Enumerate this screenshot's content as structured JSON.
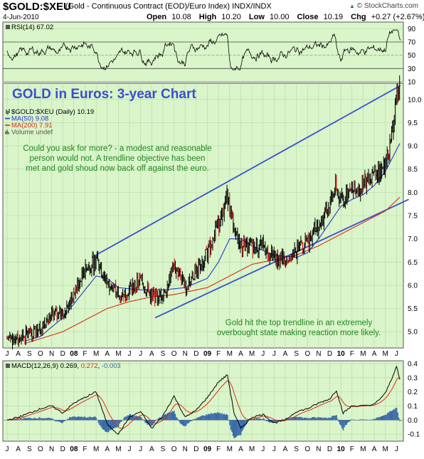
{
  "header": {
    "symbol": "$GOLD:$XEU",
    "description": "(Gold - Continuous Contract (EOD)/Euro Index)",
    "exchange": "INDX/INDX",
    "date": "4-Jun-2010",
    "open_label": "Open",
    "open": "10.08",
    "high_label": "High",
    "high": "10.20",
    "low_label": "Low",
    "low": "10.00",
    "close_label": "Close",
    "close": "10.19",
    "chg_label": "Chg",
    "chg": "+0.27 (+2.67%)",
    "brand": "© StockCharts.com",
    "brand_mark": "▲"
  },
  "colors": {
    "panel_bg": "#d9f5c9",
    "price_bar": "#000000",
    "price_bar_alt": "#cc0000",
    "ma50": "#2a36c8",
    "ma200": "#dd2a1a",
    "trendline": "#3a4fd0",
    "macd_line": "#000000",
    "macd_signal": "#dd2a1a",
    "macd_hist": "#3a6aa8",
    "rsi_fill": "#66a866",
    "annotation": "#228822",
    "headline": "#3a4fd0"
  },
  "chart_data": [
    {
      "type": "line",
      "panel": "RSI",
      "legend": "RSI(14) 67.02",
      "y_ticks": [
        10,
        30,
        50,
        70,
        90
      ],
      "ylim": [
        10,
        100
      ],
      "overbought": 70,
      "oversold": 30,
      "last_value": 67.02
    },
    {
      "type": "ohlc",
      "panel": "price",
      "title": "GOLD in Euros: 3-year Chart",
      "legend": [
        {
          "name": "$GOLD:$XEU (Daily) 10.19",
          "marker": "bars"
        },
        {
          "name": "MA(50) 9.08",
          "marker": "ma50"
        },
        {
          "name": "MA(200) 7.91",
          "marker": "ma200"
        },
        {
          "name": "Volume undef",
          "marker": "volume"
        }
      ],
      "y_ticks": [
        5.0,
        5.5,
        6.0,
        6.5,
        7.0,
        7.5,
        8.0,
        8.5,
        9.0,
        9.5,
        10.0
      ],
      "ylim": [
        4.65,
        10.35
      ],
      "x_labels": [
        "J",
        "A",
        "S",
        "O",
        "N",
        "D",
        "08",
        "F",
        "M",
        "A",
        "M",
        "J",
        "J",
        "A",
        "S",
        "O",
        "N",
        "D",
        "09",
        "F",
        "M",
        "A",
        "M",
        "J",
        "J",
        "A",
        "S",
        "O",
        "N",
        "D",
        "10",
        "F",
        "M",
        "A",
        "M",
        "J"
      ],
      "x_months": [
        "Jul 2007",
        "Aug 2007",
        "Sep 2007",
        "Oct 2007",
        "Nov 2007",
        "Dec 2007",
        "Jan 2008",
        "Feb 2008",
        "Mar 2008",
        "Apr 2008",
        "May 2008",
        "Jun 2008",
        "Jul 2008",
        "Aug 2008",
        "Sep 2008",
        "Oct 2008",
        "Nov 2008",
        "Dec 2008",
        "Jan 2009",
        "Feb 2009",
        "Mar 2009",
        "Apr 2009",
        "May 2009",
        "Jun 2009",
        "Jul 2009",
        "Aug 2009",
        "Sep 2009",
        "Oct 2009",
        "Nov 2009",
        "Dec 2009",
        "Jan 2010",
        "Feb 2010",
        "Mar 2010",
        "Apr 2010",
        "May 2010",
        "Jun 2010"
      ],
      "price_anchors": [
        [
          0,
          4.85
        ],
        [
          1,
          4.85
        ],
        [
          2,
          4.95
        ],
        [
          3,
          5.1
        ],
        [
          4,
          5.35
        ],
        [
          5,
          5.4
        ],
        [
          6,
          5.8
        ],
        [
          7,
          6.3
        ],
        [
          8,
          6.55
        ],
        [
          9,
          6.05
        ],
        [
          10,
          5.8
        ],
        [
          11,
          5.9
        ],
        [
          12,
          6.1
        ],
        [
          13,
          5.75
        ],
        [
          14,
          5.8
        ],
        [
          15,
          6.4
        ],
        [
          16,
          6.0
        ],
        [
          17,
          6.3
        ],
        [
          18,
          6.7
        ],
        [
          19,
          7.3
        ],
        [
          19.8,
          7.95
        ],
        [
          20.4,
          7.2
        ],
        [
          21,
          6.85
        ],
        [
          22,
          6.85
        ],
        [
          23,
          6.85
        ],
        [
          24,
          6.6
        ],
        [
          25,
          6.55
        ],
        [
          26,
          6.7
        ],
        [
          27,
          6.95
        ],
        [
          28,
          7.3
        ],
        [
          29,
          7.7
        ],
        [
          29.5,
          8.1
        ],
        [
          30,
          7.8
        ],
        [
          31,
          8.05
        ],
        [
          32,
          8.15
        ],
        [
          33,
          8.35
        ],
        [
          34,
          8.6
        ],
        [
          34.6,
          9.25
        ],
        [
          35.1,
          10.15
        ],
        [
          35.35,
          10.19
        ]
      ],
      "ma50_anchors": [
        [
          1.6,
          4.8
        ],
        [
          3,
          4.9
        ],
        [
          5,
          5.3
        ],
        [
          7,
          5.9
        ],
        [
          8,
          6.2
        ],
        [
          9,
          6.15
        ],
        [
          10,
          5.95
        ],
        [
          12,
          5.9
        ],
        [
          14,
          5.9
        ],
        [
          16,
          5.95
        ],
        [
          18,
          6.15
        ],
        [
          19,
          6.5
        ],
        [
          20,
          7.0
        ],
        [
          21,
          7.0
        ],
        [
          22,
          6.85
        ],
        [
          23,
          6.75
        ],
        [
          24,
          6.65
        ],
        [
          26,
          6.6
        ],
        [
          27,
          6.7
        ],
        [
          28,
          7.0
        ],
        [
          29,
          7.35
        ],
        [
          30,
          7.7
        ],
        [
          31,
          7.85
        ],
        [
          32,
          7.95
        ],
        [
          33,
          8.15
        ],
        [
          34,
          8.45
        ],
        [
          35.35,
          9.08
        ]
      ],
      "ma200_anchors": [
        [
          1.6,
          4.75
        ],
        [
          3,
          4.85
        ],
        [
          5,
          5.0
        ],
        [
          7,
          5.25
        ],
        [
          9,
          5.5
        ],
        [
          11,
          5.65
        ],
        [
          13,
          5.75
        ],
        [
          15,
          5.8
        ],
        [
          17,
          5.9
        ],
        [
          18,
          5.95
        ],
        [
          20,
          6.2
        ],
        [
          22,
          6.45
        ],
        [
          24,
          6.55
        ],
        [
          26,
          6.65
        ],
        [
          28,
          6.85
        ],
        [
          30,
          7.1
        ],
        [
          32,
          7.35
        ],
        [
          34,
          7.6
        ],
        [
          35.35,
          7.91
        ]
      ],
      "trendlines": [
        {
          "from": [
            7.6,
            6.6
          ],
          "to": [
            35.35,
            10.3
          ]
        },
        {
          "from": [
            13.3,
            5.3
          ],
          "to": [
            36.1,
            7.85
          ]
        }
      ],
      "annotations": [
        "Could you ask for more? - a modest and reasonable",
        "person would not. A trendline objective has been",
        "met and gold shoud now back off against the euro.",
        "Gold hit the top trendline in an extremely",
        "overbought state making reaction more likely."
      ]
    },
    {
      "type": "line",
      "panel": "MACD",
      "legend_name": "MACD(12,26,9)",
      "macd_value": "0.269",
      "signal_value": "0.272",
      "hist_value": "-0.003",
      "y_ticks": [
        -0.1,
        0.0,
        0.1,
        0.2,
        0.3,
        0.4
      ],
      "ylim": [
        -0.15,
        0.42
      ],
      "macd_anchors": [
        [
          0,
          0.0
        ],
        [
          1,
          0.02
        ],
        [
          2,
          0.05
        ],
        [
          3,
          0.08
        ],
        [
          4,
          0.1
        ],
        [
          5,
          0.05
        ],
        [
          6,
          0.12
        ],
        [
          7,
          0.16
        ],
        [
          8,
          0.2
        ],
        [
          9,
          -0.03
        ],
        [
          10,
          -0.1
        ],
        [
          11,
          0.02
        ],
        [
          12,
          0.06
        ],
        [
          13,
          -0.06
        ],
        [
          14,
          0.03
        ],
        [
          15,
          0.17
        ],
        [
          16,
          0.02
        ],
        [
          17,
          0.07
        ],
        [
          18,
          0.16
        ],
        [
          19,
          0.27
        ],
        [
          19.8,
          0.32
        ],
        [
          20.4,
          0.05
        ],
        [
          21,
          -0.06
        ],
        [
          22,
          0.02
        ],
        [
          23,
          0.04
        ],
        [
          24,
          -0.02
        ],
        [
          25,
          0.0
        ],
        [
          26,
          0.06
        ],
        [
          27,
          0.08
        ],
        [
          28,
          0.12
        ],
        [
          29,
          0.15
        ],
        [
          29.6,
          0.21
        ],
        [
          30.2,
          0.05
        ],
        [
          31,
          0.1
        ],
        [
          32,
          0.1
        ],
        [
          33,
          0.11
        ],
        [
          34,
          0.19
        ],
        [
          34.6,
          0.3
        ],
        [
          35,
          0.38
        ],
        [
          35.35,
          0.269
        ]
      ]
    }
  ]
}
